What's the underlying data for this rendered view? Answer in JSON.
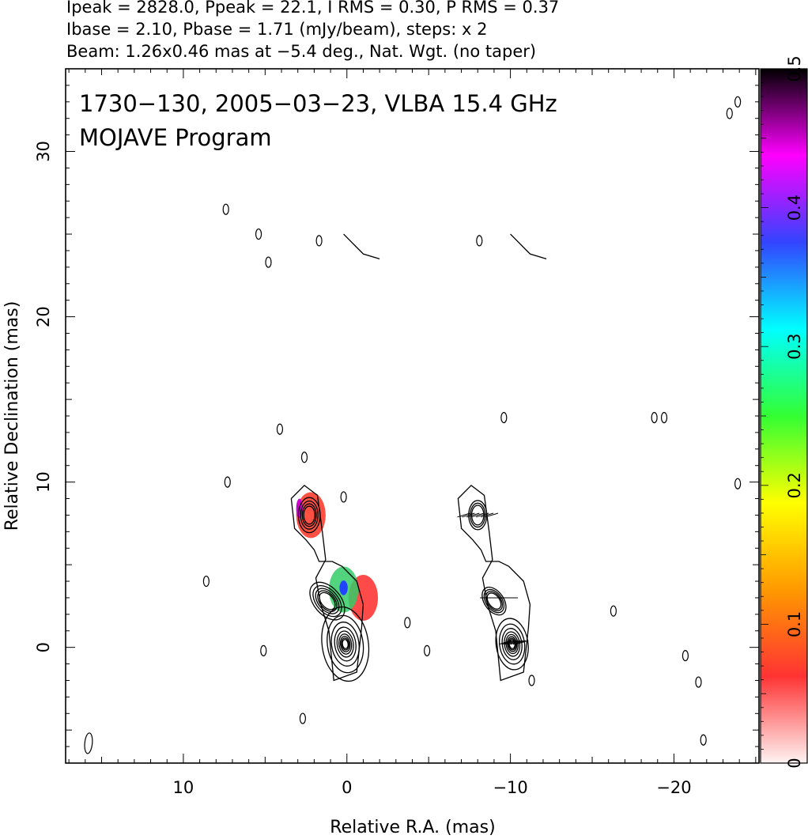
{
  "header": {
    "line1": "Ipeak = 2828.0, Ppeak = 22.1, I RMS = 0.30, P RMS = 0.37",
    "line2": "Ibase = 2.10, Pbase = 1.71 (mJy/beam), steps: x 2",
    "line3": "Beam: 1.26x0.46 mas at −5.4 deg., Nat. Wgt. (no taper)"
  },
  "chart_data": {
    "type": "heatmap",
    "title": "1730−130, 2005−03−23, VLBA 15.4 GHz",
    "subtitle": "MOJAVE Program",
    "xlabel": "Relative R.A. (mas)",
    "ylabel": "Relative Declination (mas)",
    "xlim": [
      17.2,
      -25.2
    ],
    "ylim": [
      -7,
      35
    ],
    "x_ticks": [
      10,
      0,
      -10,
      -20
    ],
    "x_tick_labels": [
      "10",
      "0",
      "−10",
      "−20"
    ],
    "y_ticks": [
      0,
      10,
      20,
      30
    ],
    "y_tick_labels": [
      "0",
      "10",
      "20",
      "30"
    ],
    "colorbar": {
      "range": [
        0,
        0.5
      ],
      "ticks": [
        0,
        0.1,
        0.2,
        0.3,
        0.4,
        0.5
      ],
      "tick_labels": [
        "0",
        "0.1",
        "0.2",
        "0.3",
        "0.4",
        "0.5"
      ],
      "stops": [
        "#fff3f3",
        "#ff3333",
        "#ff9900",
        "#ffff00",
        "#33ff33",
        "#00ffff",
        "#3344ff",
        "#ff00ff",
        "#000000"
      ]
    },
    "left_panel": {
      "core": {
        "x": 0.1,
        "y": 0.2
      },
      "components": [
        {
          "x": -1.0,
          "y": 3.0,
          "fraction": 0.12
        },
        {
          "x": 0.2,
          "y": 3.5,
          "fraction": 0.38
        },
        {
          "x": 2.2,
          "y": 8.0,
          "fraction": 0.15
        }
      ],
      "features": [
        {
          "x": 7.4,
          "y": 26.5
        },
        {
          "x": 5.4,
          "y": 25.0
        },
        {
          "x": 4.8,
          "y": 23.3
        },
        {
          "x": 1.7,
          "y": 24.6
        },
        {
          "x": 8.6,
          "y": 4.0
        },
        {
          "x": 5.1,
          "y": -0.2
        },
        {
          "x": 2.7,
          "y": -4.3
        },
        {
          "x": 4.1,
          "y": 13.2
        },
        {
          "x": 2.6,
          "y": 11.5
        },
        {
          "x": 7.3,
          "y": 10.0
        },
        {
          "x": 0.2,
          "y": 9.1
        }
      ],
      "ridge": [
        [
          0.2,
          25.0
        ],
        [
          -1.0,
          23.8
        ],
        [
          -2.0,
          23.5
        ]
      ]
    },
    "right_panel": {
      "core": {
        "x": -10.1,
        "y": 0.2
      },
      "components": [
        {
          "x": -8.0,
          "y": 8.0
        },
        {
          "x": -9.2,
          "y": 3.0
        },
        {
          "x": -10.2,
          "y": 0.3
        }
      ],
      "features": [
        {
          "x": -11.3,
          "y": -2.0
        },
        {
          "x": -16.3,
          "y": 2.2
        },
        {
          "x": -19.4,
          "y": 13.9
        },
        {
          "x": -18.8,
          "y": 13.9
        },
        {
          "x": -23.9,
          "y": 9.9
        },
        {
          "x": -21.5,
          "y": -2.1
        },
        {
          "x": -20.7,
          "y": -0.5
        },
        {
          "x": -21.8,
          "y": -5.6
        },
        {
          "x": -9.6,
          "y": 13.9
        },
        {
          "x": -3.7,
          "y": 1.5
        },
        {
          "x": -4.9,
          "y": -0.2
        },
        {
          "x": -23.9,
          "y": 33.0
        },
        {
          "x": -23.4,
          "y": 32.3
        },
        {
          "x": -8.1,
          "y": 24.6
        }
      ],
      "ridge": [
        [
          -10.0,
          25.0
        ],
        [
          -11.2,
          23.8
        ],
        [
          -12.2,
          23.5
        ]
      ]
    },
    "beam": {
      "major_mas": 1.26,
      "minor_mas": 0.46,
      "pa_deg": -5.4,
      "x": 15.8,
      "y": -5.8
    }
  }
}
